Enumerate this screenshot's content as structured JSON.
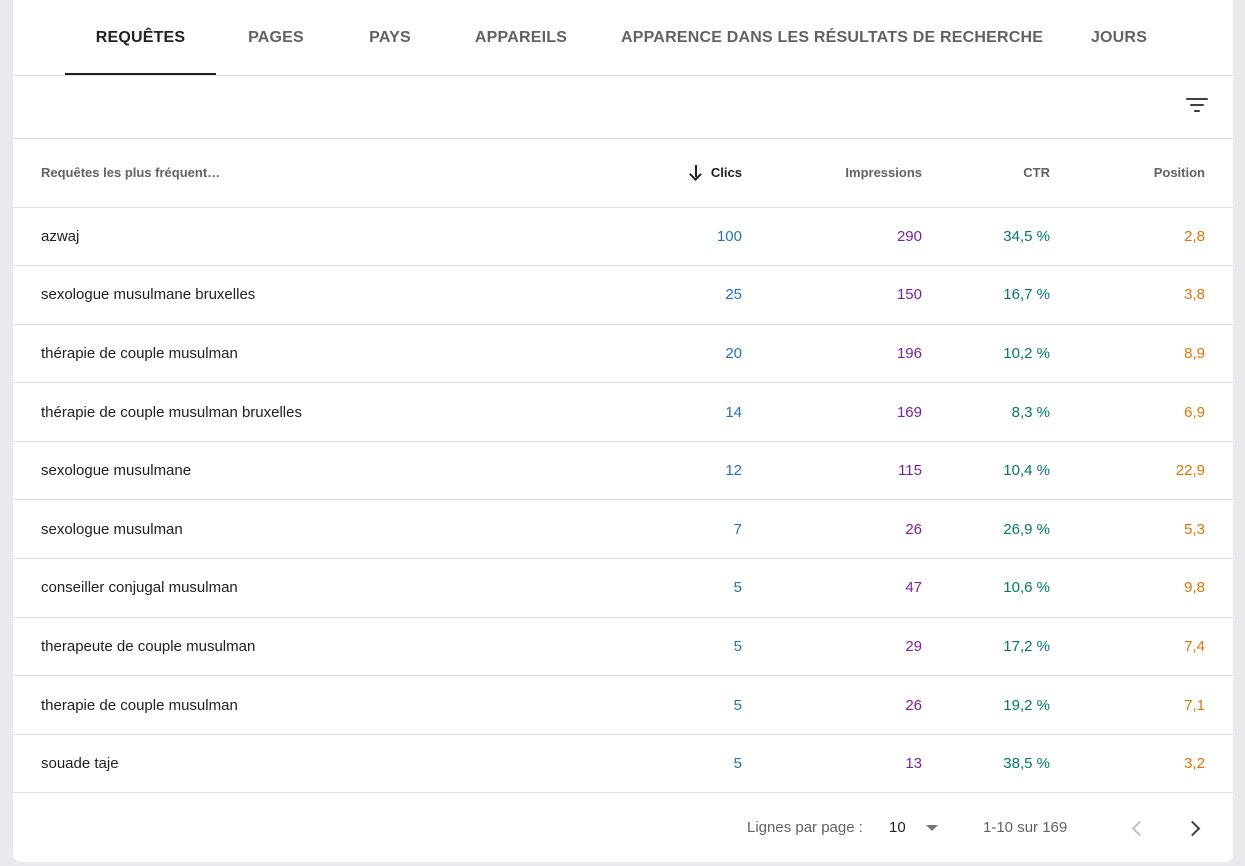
{
  "tabs": [
    {
      "label": "REQUÊTES",
      "active": true
    },
    {
      "label": "PAGES"
    },
    {
      "label": "PAYS"
    },
    {
      "label": "APPAREILS"
    },
    {
      "label": "APPARENCE DANS LES RÉSULTATS DE RECHERCHE"
    },
    {
      "label": "JOURS"
    }
  ],
  "toolbar": {
    "filter_icon": "filter-list-icon"
  },
  "table": {
    "headers": {
      "query": "Requêtes les plus fréquent…",
      "clicks": "Clics",
      "impressions": "Impressions",
      "ctr": "CTR",
      "position": "Position"
    },
    "sort": {
      "column": "clicks",
      "direction": "descending",
      "icon": "arrow-down-icon"
    },
    "rows": [
      {
        "query": "azwaj",
        "clicks": "100",
        "impressions": "290",
        "ctr": "34,5 %",
        "position": "2,8"
      },
      {
        "query": "sexologue musulmane bruxelles",
        "clicks": "25",
        "impressions": "150",
        "ctr": "16,7 %",
        "position": "3,8"
      },
      {
        "query": "thérapie de couple musulman",
        "clicks": "20",
        "impressions": "196",
        "ctr": "10,2 %",
        "position": "8,9"
      },
      {
        "query": "thérapie de couple musulman bruxelles",
        "clicks": "14",
        "impressions": "169",
        "ctr": "8,3 %",
        "position": "6,9"
      },
      {
        "query": "sexologue musulmane",
        "clicks": "12",
        "impressions": "115",
        "ctr": "10,4 %",
        "position": "22,9"
      },
      {
        "query": "sexologue musulman",
        "clicks": "7",
        "impressions": "26",
        "ctr": "26,9 %",
        "position": "5,3"
      },
      {
        "query": "conseiller conjugal musulman",
        "clicks": "5",
        "impressions": "47",
        "ctr": "10,6 %",
        "position": "9,8"
      },
      {
        "query": "therapeute de couple musulman",
        "clicks": "5",
        "impressions": "29",
        "ctr": "17,2 %",
        "position": "7,4"
      },
      {
        "query": "therapie de couple musulman",
        "clicks": "5",
        "impressions": "26",
        "ctr": "19,2 %",
        "position": "7,1"
      },
      {
        "query": "souade taje",
        "clicks": "5",
        "impressions": "13",
        "ctr": "38,5 %",
        "position": "3,2"
      }
    ]
  },
  "pagination": {
    "rows_label": "Lignes par page :",
    "rows_value": "10",
    "range": "1-10 sur 169"
  },
  "colors": {
    "clicks": "#1e73be",
    "impressions": "#7b1fa2",
    "ctr": "#00796b",
    "position": "#e37400"
  }
}
